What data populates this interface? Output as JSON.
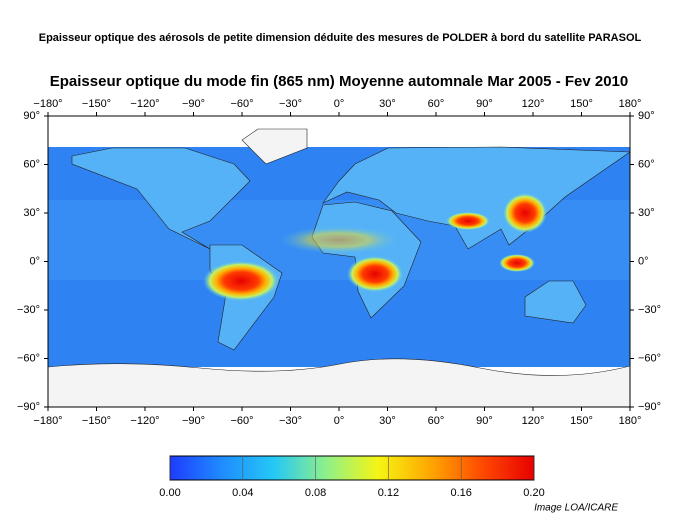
{
  "header": {
    "title": "Epaisseur optique des aérosols de petite dimension déduite des mesures de POLDER à bord du satellite PARASOL"
  },
  "map": {
    "title": "Epaisseur optique du mode fin (865 nm) Moyenne automnale Mar 2005 - Fev 2010",
    "xlim": [
      -180,
      180
    ],
    "ylim": [
      -90,
      90
    ],
    "xticks": [
      {
        "value": -180,
        "label": "−180°"
      },
      {
        "value": -150,
        "label": "−150°"
      },
      {
        "value": -120,
        "label": "−120°"
      },
      {
        "value": -90,
        "label": "−90°"
      },
      {
        "value": -60,
        "label": "−60°"
      },
      {
        "value": -30,
        "label": "−30°"
      },
      {
        "value": 0,
        "label": "0°"
      },
      {
        "value": 30,
        "label": "30°"
      },
      {
        "value": 60,
        "label": "60°"
      },
      {
        "value": 90,
        "label": "90°"
      },
      {
        "value": 120,
        "label": "120°"
      },
      {
        "value": 150,
        "label": "150°"
      },
      {
        "value": 180,
        "label": "180°"
      }
    ],
    "yticks": [
      {
        "value": 90,
        "label": "90°"
      },
      {
        "value": 60,
        "label": "60°"
      },
      {
        "value": 30,
        "label": "30°"
      },
      {
        "value": 0,
        "label": "0°"
      },
      {
        "value": -30,
        "label": "−30°"
      },
      {
        "value": -60,
        "label": "−60°"
      },
      {
        "value": -90,
        "label": "−90°"
      }
    ]
  },
  "colorbar": {
    "lim": [
      0,
      0.2
    ],
    "ticks": [
      {
        "value": 0,
        "label": "0.00"
      },
      0.04,
      0.08,
      0.12,
      0.16,
      {
        "value": 0.2,
        "label": "0.20"
      }
    ],
    "colors": [
      "#1e3cff",
      "#1f8cff",
      "#25c8f5",
      "#8ef08a",
      "#f5f514",
      "#ffa800",
      "#ff4a00",
      "#e80000"
    ]
  },
  "credit": "Image LOA/ICARE"
}
